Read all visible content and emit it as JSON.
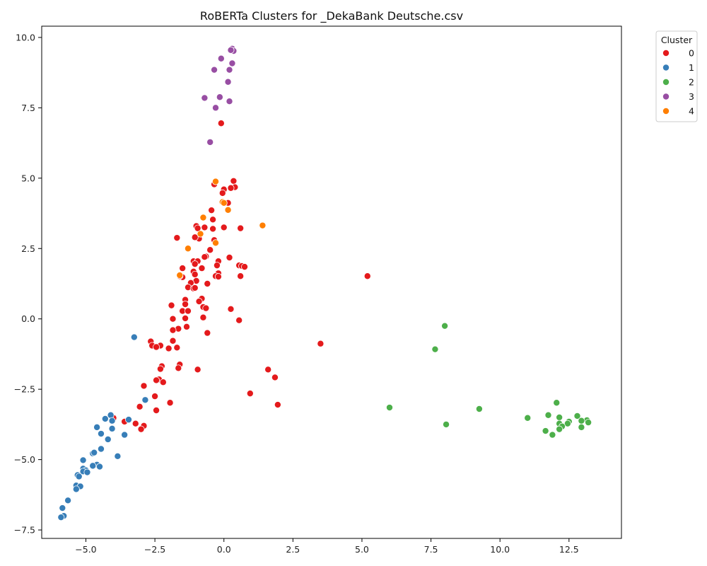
{
  "chart_data": {
    "type": "scatter",
    "title": "RoBERTa Clusters for _DekaBank Deutsche.csv",
    "xlabel": "",
    "ylabel": "",
    "xlim": [
      -6.6,
      14.4
    ],
    "ylim": [
      -7.8,
      10.4
    ],
    "x_ticks": [
      -5.0,
      -2.5,
      0.0,
      2.5,
      5.0,
      7.5,
      10.0,
      12.5
    ],
    "y_ticks": [
      -7.5,
      -5.0,
      -2.5,
      0.0,
      2.5,
      5.0,
      7.5,
      10.0
    ],
    "grid": false,
    "legend": {
      "title": "Cluster",
      "placement": "outside-top-right"
    },
    "series": [
      {
        "name": "0",
        "color": "#e41a1c",
        "points": [
          [
            -0.1,
            6.95
          ],
          [
            -0.35,
            4.78
          ],
          [
            0.35,
            4.9
          ],
          [
            0.4,
            4.68
          ],
          [
            0.25,
            4.65
          ],
          [
            0.0,
            4.6
          ],
          [
            -0.05,
            4.47
          ],
          [
            0.15,
            4.12
          ],
          [
            -0.45,
            3.86
          ],
          [
            -0.4,
            3.53
          ],
          [
            -0.4,
            3.2
          ],
          [
            -0.7,
            3.25
          ],
          [
            -1.0,
            3.3
          ],
          [
            -0.95,
            3.22
          ],
          [
            0.0,
            3.25
          ],
          [
            0.6,
            3.22
          ],
          [
            -1.7,
            2.88
          ],
          [
            -0.9,
            2.85
          ],
          [
            -1.05,
            2.9
          ],
          [
            -0.35,
            2.8
          ],
          [
            -0.5,
            2.45
          ],
          [
            -0.65,
            2.22
          ],
          [
            -0.7,
            2.2
          ],
          [
            0.2,
            2.18
          ],
          [
            -1.1,
            2.05
          ],
          [
            -0.95,
            2.05
          ],
          [
            -0.2,
            2.05
          ],
          [
            -0.25,
            1.9
          ],
          [
            -1.05,
            1.95
          ],
          [
            0.55,
            1.9
          ],
          [
            0.65,
            1.88
          ],
          [
            0.75,
            1.85
          ],
          [
            -1.5,
            1.8
          ],
          [
            -0.8,
            1.8
          ],
          [
            -1.1,
            1.68
          ],
          [
            -1.05,
            1.58
          ],
          [
            -0.2,
            1.62
          ],
          [
            -0.3,
            1.52
          ],
          [
            -0.2,
            1.5
          ],
          [
            0.6,
            1.52
          ],
          [
            -1.5,
            1.48
          ],
          [
            -1.6,
            1.52
          ],
          [
            -1.0,
            1.35
          ],
          [
            -1.2,
            1.28
          ],
          [
            -0.6,
            1.25
          ],
          [
            -1.3,
            1.12
          ],
          [
            -1.1,
            1.08
          ],
          [
            -1.05,
            1.1
          ],
          [
            -0.8,
            0.72
          ],
          [
            -1.4,
            0.68
          ],
          [
            -0.9,
            0.62
          ],
          [
            -1.4,
            0.52
          ],
          [
            -0.75,
            0.42
          ],
          [
            -0.65,
            0.38
          ],
          [
            -1.9,
            0.48
          ],
          [
            -1.5,
            0.28
          ],
          [
            -1.3,
            0.28
          ],
          [
            0.25,
            0.35
          ],
          [
            -0.75,
            0.05
          ],
          [
            -1.4,
            0.02
          ],
          [
            -1.85,
            0.0
          ],
          [
            0.55,
            -0.05
          ],
          [
            -1.35,
            -0.28
          ],
          [
            -1.65,
            -0.35
          ],
          [
            -1.85,
            -0.4
          ],
          [
            -0.6,
            -0.5
          ],
          [
            -2.65,
            -0.8
          ],
          [
            -1.85,
            -0.78
          ],
          [
            -2.6,
            -0.95
          ],
          [
            -2.3,
            -0.95
          ],
          [
            -2.45,
            -1.0
          ],
          [
            -2.0,
            -1.05
          ],
          [
            -1.7,
            -1.02
          ],
          [
            -1.6,
            -1.62
          ],
          [
            -1.65,
            -1.75
          ],
          [
            -2.25,
            -1.68
          ],
          [
            -2.3,
            -1.78
          ],
          [
            -0.95,
            -1.8
          ],
          [
            -2.35,
            -2.15
          ],
          [
            -2.45,
            -2.18
          ],
          [
            -2.2,
            -2.25
          ],
          [
            -2.9,
            -2.38
          ],
          [
            -2.5,
            -2.75
          ],
          [
            -1.95,
            -2.98
          ],
          [
            -3.05,
            -3.12
          ],
          [
            -2.45,
            -3.25
          ],
          [
            -3.6,
            -3.65
          ],
          [
            -3.2,
            -3.72
          ],
          [
            -2.9,
            -3.8
          ],
          [
            -3.0,
            -3.92
          ],
          [
            -4.0,
            -3.52
          ],
          [
            0.95,
            -2.65
          ],
          [
            1.6,
            -1.8
          ],
          [
            1.85,
            -2.08
          ],
          [
            1.95,
            -3.05
          ],
          [
            3.5,
            -0.88
          ],
          [
            5.2,
            1.52
          ]
        ]
      },
      {
        "name": "1",
        "color": "#377eb8",
        "points": [
          [
            -3.25,
            -0.65
          ],
          [
            -2.85,
            -2.88
          ],
          [
            -4.1,
            -3.42
          ],
          [
            -4.3,
            -3.55
          ],
          [
            -4.05,
            -3.62
          ],
          [
            -3.45,
            -3.58
          ],
          [
            -4.6,
            -3.85
          ],
          [
            -4.05,
            -3.9
          ],
          [
            -4.45,
            -4.08
          ],
          [
            -3.6,
            -4.12
          ],
          [
            -4.2,
            -4.28
          ],
          [
            -4.45,
            -4.62
          ],
          [
            -4.75,
            -4.78
          ],
          [
            -4.7,
            -4.75
          ],
          [
            -3.85,
            -4.88
          ],
          [
            -5.1,
            -5.02
          ],
          [
            -4.6,
            -5.18
          ],
          [
            -4.75,
            -5.22
          ],
          [
            -4.5,
            -5.25
          ],
          [
            -5.1,
            -5.32
          ],
          [
            -5.0,
            -5.38
          ],
          [
            -5.1,
            -5.42
          ],
          [
            -4.95,
            -5.45
          ],
          [
            -5.3,
            -5.55
          ],
          [
            -5.25,
            -5.6
          ],
          [
            -5.35,
            -5.92
          ],
          [
            -5.2,
            -5.95
          ],
          [
            -5.35,
            -6.05
          ],
          [
            -5.65,
            -6.45
          ],
          [
            -5.85,
            -6.72
          ],
          [
            -5.8,
            -7.0
          ],
          [
            -5.9,
            -7.05
          ]
        ]
      },
      {
        "name": "2",
        "color": "#4daf4a",
        "points": [
          [
            8.0,
            -0.25
          ],
          [
            7.65,
            -1.08
          ],
          [
            6.0,
            -3.15
          ],
          [
            9.25,
            -3.2
          ],
          [
            8.05,
            -3.75
          ],
          [
            11.0,
            -3.52
          ],
          [
            11.75,
            -3.42
          ],
          [
            12.05,
            -2.98
          ],
          [
            12.15,
            -3.5
          ],
          [
            12.8,
            -3.45
          ],
          [
            12.15,
            -3.72
          ],
          [
            12.5,
            -3.65
          ],
          [
            12.45,
            -3.72
          ],
          [
            13.15,
            -3.6
          ],
          [
            13.2,
            -3.68
          ],
          [
            12.95,
            -3.62
          ],
          [
            12.25,
            -3.82
          ],
          [
            12.15,
            -3.92
          ],
          [
            12.95,
            -3.85
          ],
          [
            11.65,
            -3.98
          ],
          [
            11.9,
            -4.12
          ]
        ]
      },
      {
        "name": "3",
        "color": "#984ea3",
        "points": [
          [
            0.3,
            9.6
          ],
          [
            0.35,
            9.52
          ],
          [
            0.25,
            9.55
          ],
          [
            -0.1,
            9.25
          ],
          [
            0.3,
            9.08
          ],
          [
            -0.35,
            8.85
          ],
          [
            0.2,
            8.85
          ],
          [
            0.15,
            8.42
          ],
          [
            -0.15,
            7.88
          ],
          [
            -0.7,
            7.85
          ],
          [
            0.2,
            7.73
          ],
          [
            -0.3,
            7.5
          ],
          [
            -0.5,
            6.28
          ]
        ]
      },
      {
        "name": "4",
        "color": "#ff7f00",
        "points": [
          [
            -0.3,
            4.88
          ],
          [
            -0.05,
            4.15
          ],
          [
            0.0,
            4.12
          ],
          [
            0.15,
            3.87
          ],
          [
            -0.75,
            3.6
          ],
          [
            1.4,
            3.32
          ],
          [
            -0.85,
            3.02
          ],
          [
            -0.3,
            2.7
          ],
          [
            -1.3,
            2.5
          ],
          [
            -1.6,
            1.55
          ]
        ]
      }
    ]
  }
}
